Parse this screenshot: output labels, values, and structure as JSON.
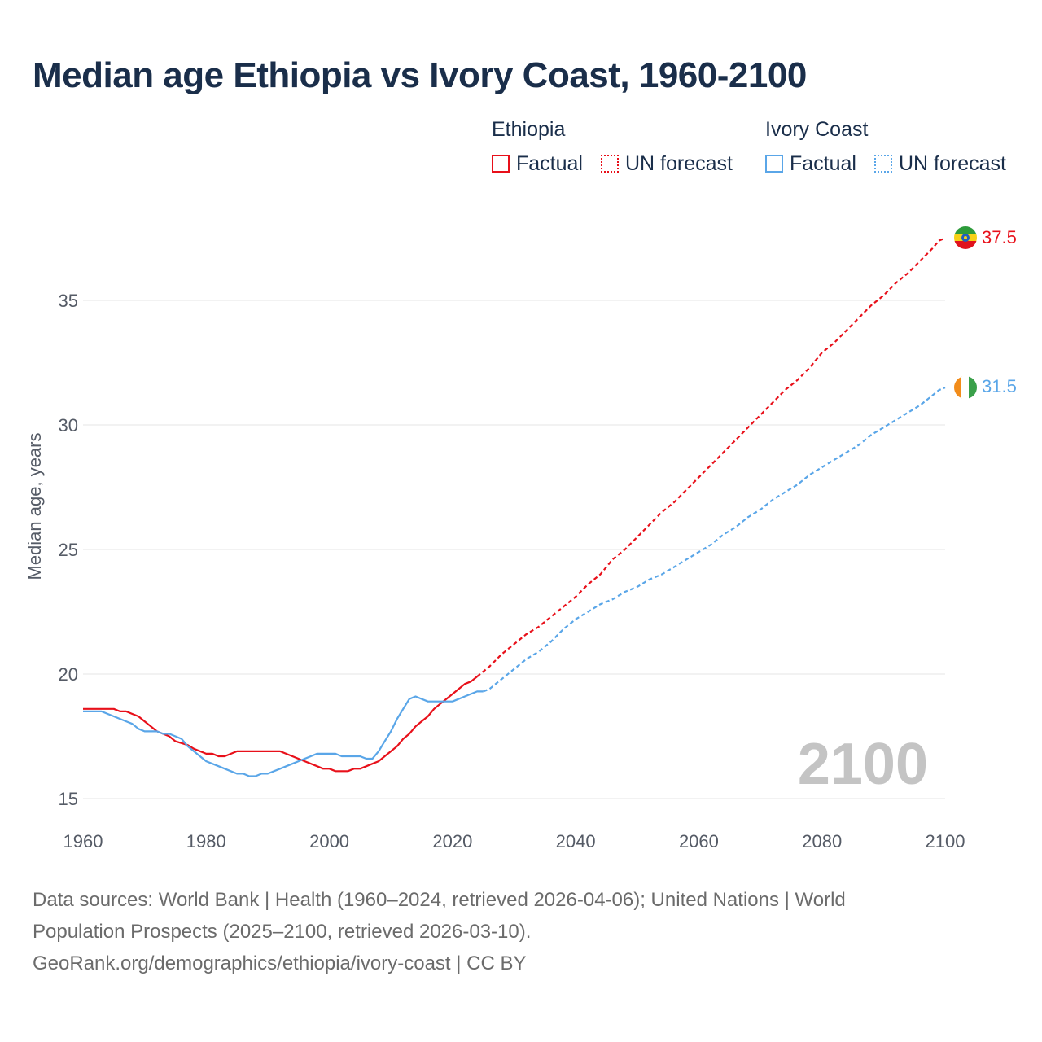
{
  "title": "Median age Ethiopia vs Ivory Coast, 1960-2100",
  "legend": {
    "groups": [
      {
        "name": "Ethiopia",
        "color": "#e8101a",
        "factual": "Factual",
        "forecast": "UN forecast"
      },
      {
        "name": "Ivory Coast",
        "color": "#5aa6e8",
        "factual": "Factual",
        "forecast": "UN forecast"
      }
    ]
  },
  "year_watermark": "2100",
  "source": {
    "line1": "Data sources: World Bank | Health (1960–2024, retrieved 2026-04-06); United Nations | World",
    "line2": "Population Prospects (2025–2100, retrieved 2026-03-10).",
    "line3": "GeoRank.org/demographics/ethiopia/ivory-coast | CC BY"
  },
  "chart_data": {
    "type": "line",
    "title": "Median age Ethiopia vs Ivory Coast, 1960-2100",
    "xlabel": "",
    "ylabel": "Median age, years",
    "xlim": [
      1960,
      2100
    ],
    "ylim": [
      14.5,
      38.5
    ],
    "x_ticks": [
      1960,
      1980,
      2000,
      2020,
      2040,
      2060,
      2080,
      2100
    ],
    "y_ticks": [
      15,
      20,
      25,
      30,
      35
    ],
    "grid": true,
    "end_labels": [
      {
        "series": "Ethiopia",
        "text": "37.5",
        "color": "#e8101a",
        "flag": "ethiopia-flag-icon"
      },
      {
        "series": "Ivory Coast",
        "text": "31.5",
        "color": "#5aa6e8",
        "flag": "ivory-coast-flag-icon"
      }
    ],
    "series": [
      {
        "name": "Ethiopia",
        "color": "#e8101a",
        "factual": [
          [
            1960,
            18.6
          ],
          [
            1962,
            18.6
          ],
          [
            1965,
            18.6
          ],
          [
            1966,
            18.5
          ],
          [
            1967,
            18.5
          ],
          [
            1968,
            18.4
          ],
          [
            1969,
            18.3
          ],
          [
            1970,
            18.1
          ],
          [
            1972,
            17.7
          ],
          [
            1974,
            17.5
          ],
          [
            1975,
            17.3
          ],
          [
            1977,
            17.15
          ],
          [
            1978,
            17.0
          ],
          [
            1980,
            16.8
          ],
          [
            1981,
            16.8
          ],
          [
            1982,
            16.7
          ],
          [
            1983,
            16.7
          ],
          [
            1985,
            16.9
          ],
          [
            1987,
            16.9
          ],
          [
            1990,
            16.9
          ],
          [
            1992,
            16.9
          ],
          [
            1994,
            16.7
          ],
          [
            1996,
            16.5
          ],
          [
            1998,
            16.3
          ],
          [
            1999,
            16.2
          ],
          [
            2000,
            16.2
          ],
          [
            2001,
            16.1
          ],
          [
            2003,
            16.1
          ],
          [
            2004,
            16.2
          ],
          [
            2005,
            16.2
          ],
          [
            2007,
            16.4
          ],
          [
            2008,
            16.5
          ],
          [
            2009,
            16.7
          ],
          [
            2010,
            16.9
          ],
          [
            2011,
            17.1
          ],
          [
            2012,
            17.4
          ],
          [
            2013,
            17.6
          ],
          [
            2014,
            17.9
          ],
          [
            2015,
            18.1
          ],
          [
            2016,
            18.3
          ],
          [
            2017,
            18.6
          ],
          [
            2018,
            18.8
          ],
          [
            2019,
            19.0
          ],
          [
            2020,
            19.2
          ],
          [
            2021,
            19.4
          ],
          [
            2022,
            19.6
          ],
          [
            2023,
            19.7
          ],
          [
            2024,
            19.9
          ]
        ],
        "forecast": [
          [
            2024,
            19.9
          ],
          [
            2026,
            20.3
          ],
          [
            2028,
            20.8
          ],
          [
            2030,
            21.2
          ],
          [
            2032,
            21.6
          ],
          [
            2034,
            21.9
          ],
          [
            2036,
            22.3
          ],
          [
            2038,
            22.7
          ],
          [
            2040,
            23.1
          ],
          [
            2042,
            23.6
          ],
          [
            2044,
            24.0
          ],
          [
            2046,
            24.6
          ],
          [
            2048,
            25.0
          ],
          [
            2050,
            25.5
          ],
          [
            2052,
            26.0
          ],
          [
            2054,
            26.5
          ],
          [
            2056,
            26.9
          ],
          [
            2058,
            27.4
          ],
          [
            2060,
            27.9
          ],
          [
            2062,
            28.4
          ],
          [
            2064,
            28.9
          ],
          [
            2066,
            29.4
          ],
          [
            2068,
            29.9
          ],
          [
            2070,
            30.4
          ],
          [
            2072,
            30.9
          ],
          [
            2074,
            31.4
          ],
          [
            2076,
            31.8
          ],
          [
            2078,
            32.3
          ],
          [
            2080,
            32.9
          ],
          [
            2082,
            33.3
          ],
          [
            2084,
            33.8
          ],
          [
            2086,
            34.3
          ],
          [
            2088,
            34.8
          ],
          [
            2090,
            35.2
          ],
          [
            2092,
            35.7
          ],
          [
            2094,
            36.1
          ],
          [
            2096,
            36.6
          ],
          [
            2098,
            37.1
          ],
          [
            2099,
            37.4
          ],
          [
            2100,
            37.5
          ]
        ]
      },
      {
        "name": "Ivory Coast",
        "color": "#5aa6e8",
        "factual": [
          [
            1960,
            18.5
          ],
          [
            1962,
            18.5
          ],
          [
            1963,
            18.5
          ],
          [
            1965,
            18.3
          ],
          [
            1967,
            18.1
          ],
          [
            1968,
            18.0
          ],
          [
            1969,
            17.8
          ],
          [
            1970,
            17.7
          ],
          [
            1971,
            17.7
          ],
          [
            1972,
            17.7
          ],
          [
            1973,
            17.6
          ],
          [
            1974,
            17.6
          ],
          [
            1975,
            17.5
          ],
          [
            1976,
            17.4
          ],
          [
            1977,
            17.1
          ],
          [
            1978,
            16.9
          ],
          [
            1979,
            16.7
          ],
          [
            1980,
            16.5
          ],
          [
            1982,
            16.3
          ],
          [
            1984,
            16.1
          ],
          [
            1985,
            16.0
          ],
          [
            1986,
            16.0
          ],
          [
            1987,
            15.9
          ],
          [
            1988,
            15.9
          ],
          [
            1989,
            16.0
          ],
          [
            1990,
            16.0
          ],
          [
            1992,
            16.2
          ],
          [
            1994,
            16.4
          ],
          [
            1996,
            16.6
          ],
          [
            1998,
            16.8
          ],
          [
            2001,
            16.8
          ],
          [
            2002,
            16.7
          ],
          [
            2005,
            16.7
          ],
          [
            2006,
            16.6
          ],
          [
            2007,
            16.6
          ],
          [
            2008,
            16.9
          ],
          [
            2009,
            17.3
          ],
          [
            2010,
            17.7
          ],
          [
            2011,
            18.2
          ],
          [
            2012,
            18.6
          ],
          [
            2013,
            19.0
          ],
          [
            2014,
            19.1
          ],
          [
            2015,
            19.0
          ],
          [
            2016,
            18.9
          ],
          [
            2018,
            18.9
          ],
          [
            2020,
            18.9
          ],
          [
            2022,
            19.1
          ],
          [
            2024,
            19.3
          ],
          [
            2025,
            19.3
          ]
        ],
        "forecast": [
          [
            2025,
            19.3
          ],
          [
            2026,
            19.4
          ],
          [
            2028,
            19.8
          ],
          [
            2030,
            20.2
          ],
          [
            2032,
            20.6
          ],
          [
            2034,
            20.9
          ],
          [
            2036,
            21.3
          ],
          [
            2038,
            21.8
          ],
          [
            2040,
            22.2
          ],
          [
            2042,
            22.5
          ],
          [
            2044,
            22.8
          ],
          [
            2046,
            23.0
          ],
          [
            2048,
            23.3
          ],
          [
            2050,
            23.5
          ],
          [
            2052,
            23.8
          ],
          [
            2054,
            24.0
          ],
          [
            2056,
            24.3
          ],
          [
            2058,
            24.6
          ],
          [
            2060,
            24.9
          ],
          [
            2062,
            25.2
          ],
          [
            2064,
            25.6
          ],
          [
            2066,
            25.9
          ],
          [
            2068,
            26.3
          ],
          [
            2070,
            26.6
          ],
          [
            2072,
            27.0
          ],
          [
            2074,
            27.3
          ],
          [
            2076,
            27.6
          ],
          [
            2078,
            28.0
          ],
          [
            2080,
            28.3
          ],
          [
            2082,
            28.6
          ],
          [
            2084,
            28.9
          ],
          [
            2086,
            29.2
          ],
          [
            2088,
            29.6
          ],
          [
            2090,
            29.9
          ],
          [
            2092,
            30.2
          ],
          [
            2094,
            30.5
          ],
          [
            2096,
            30.8
          ],
          [
            2098,
            31.2
          ],
          [
            2099,
            31.4
          ],
          [
            2100,
            31.5
          ]
        ]
      }
    ]
  }
}
